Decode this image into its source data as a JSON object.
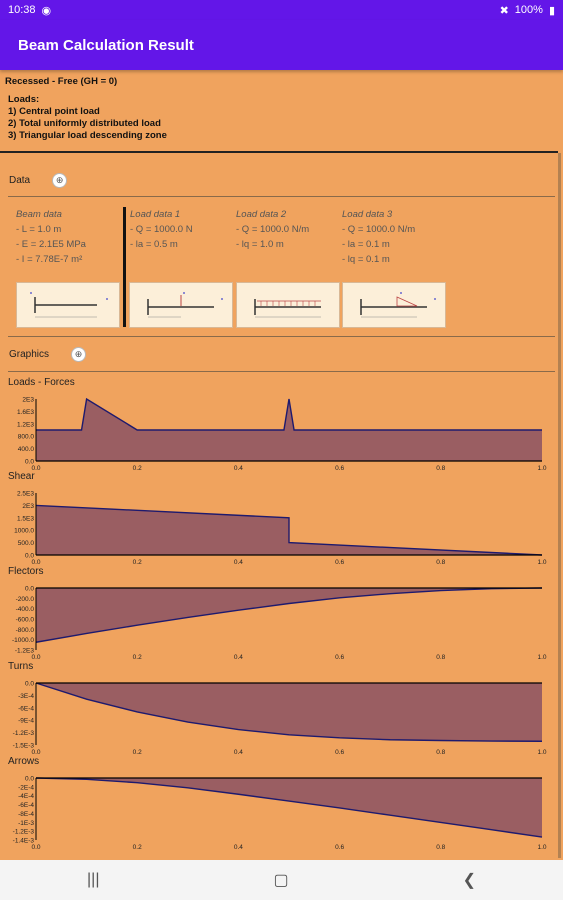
{
  "status": {
    "time": "10:38",
    "battery": "100%"
  },
  "app": {
    "title": "Beam Calculation Result"
  },
  "header": {
    "case": "Recessed - Free (GH = 0)",
    "loads_title": "Loads:",
    "loads": [
      "1) Central point load",
      "2) Total uniformly distributed load",
      "3) Triangular load descending zone"
    ]
  },
  "data_section": {
    "label": "Data",
    "beam": {
      "title": "Beam data",
      "lines": [
        "- L = 1.0 m",
        "- E = 2.1E5 MPa",
        "- I = 7.78E-7 m²"
      ]
    },
    "load1": {
      "title": "Load data 1",
      "lines": [
        "- Q = 1000.0 N",
        "- la = 0.5 m"
      ]
    },
    "load2": {
      "title": "Load data 2",
      "lines": [
        "- Q = 1000.0 N/m",
        "- lq = 1.0 m"
      ]
    },
    "load3": {
      "title": "Load data 3",
      "lines": [
        "- Q = 1000.0 N/m",
        "- la = 0.1 m",
        "- lq = 0.1 m"
      ]
    }
  },
  "graphics_section": {
    "label": "Graphics"
  },
  "x_ticks": [
    "0.0",
    "0.2",
    "0.4",
    "0.6",
    "0.8",
    "1.0"
  ],
  "colors": {
    "fill": "#9A5E62",
    "line": "#1E1A6E",
    "axis": "#000000"
  },
  "chart_data": [
    {
      "type": "area",
      "title": "Loads - Forces",
      "yticks": [
        "2E3",
        "1.6E3",
        "1.2E3",
        "800.0",
        "400.0",
        "0.0"
      ],
      "ylim": [
        0,
        2000
      ],
      "x": [
        0.0,
        0.09,
        0.1,
        0.2,
        0.49,
        0.5,
        0.51,
        1.0
      ],
      "y": [
        1000,
        1000,
        2000,
        1000,
        1000,
        2000,
        1000,
        1000
      ]
    },
    {
      "type": "area",
      "title": "Shear",
      "yticks": [
        "2.5E3",
        "2E3",
        "1.5E3",
        "1000.0",
        "500.0",
        "0.0"
      ],
      "ylim": [
        0,
        2500
      ],
      "x": [
        0.0,
        0.5,
        0.5,
        1.0
      ],
      "y": [
        2000,
        1500,
        500,
        0
      ]
    },
    {
      "type": "area",
      "title": "Flectors",
      "yticks": [
        "0.0",
        "-200.0",
        "-400.0",
        "-600.0",
        "-800.0",
        "-1000.0",
        "-1.2E3"
      ],
      "ylim": [
        -1200,
        0
      ],
      "x": [
        0.0,
        0.1,
        0.2,
        0.3,
        0.4,
        0.5,
        0.6,
        0.7,
        0.8,
        0.9,
        1.0
      ],
      "y": [
        -1050,
        -880,
        -720,
        -570,
        -430,
        -300,
        -190,
        -110,
        -50,
        -12,
        0
      ]
    },
    {
      "type": "area",
      "title": "Turns",
      "yticks": [
        "0.0",
        "-3E-4",
        "-6E-4",
        "-9E-4",
        "-1.2E-3",
        "-1.5E-3"
      ],
      "ylim": [
        -1650,
        0
      ],
      "x": [
        0.0,
        0.1,
        0.2,
        0.3,
        0.4,
        0.5,
        0.6,
        0.7,
        0.8,
        0.9,
        1.0
      ],
      "y": [
        0,
        -430,
        -770,
        -1040,
        -1240,
        -1380,
        -1460,
        -1510,
        -1530,
        -1545,
        -1550
      ]
    },
    {
      "type": "area",
      "title": "Arrows",
      "yticks": [
        "0.0",
        "-2E-4",
        "-4E-4",
        "-6E-4",
        "-8E-4",
        "-1E-3",
        "-1.2E-3",
        "-1.4E-3"
      ],
      "ylim": [
        -1450,
        0
      ],
      "x": [
        0.0,
        0.1,
        0.2,
        0.3,
        0.4,
        0.5,
        0.6,
        0.7,
        0.8,
        0.9,
        1.0
      ],
      "y": [
        0,
        -30,
        -110,
        -230,
        -380,
        -540,
        -700,
        -870,
        -1040,
        -1210,
        -1380
      ]
    }
  ]
}
